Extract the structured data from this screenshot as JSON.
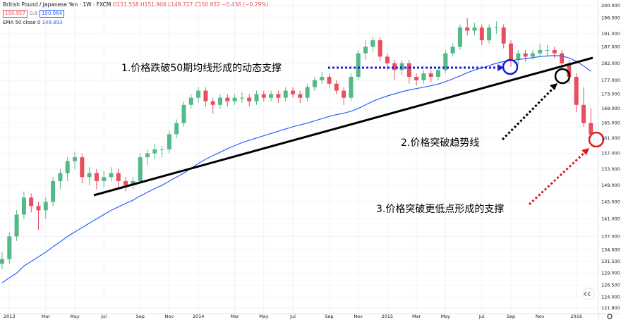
{
  "header": {
    "symbol": "British Pound / Japanese Yen · 1W · FXCM",
    "ohlc": "O151.558 H151.906 L149.727 C150.952 −0.436 (−0.29%)",
    "bid": "150.957",
    "spread": "0.8",
    "ask": "150.964",
    "indicator": "EMA 50 close 0",
    "indicator_value": "149.893"
  },
  "chart_data": {
    "type": "candlestick",
    "log_scale": true,
    "grid": true,
    "up_color": "#53b987",
    "down_color": "#eb4d5c",
    "categories": [
      null,
      "2013",
      null,
      null,
      null,
      null,
      "Mar",
      null,
      null,
      null,
      "May",
      null,
      null,
      null,
      "Jul",
      null,
      null,
      null,
      null,
      "Sep",
      null,
      null,
      null,
      "Nov",
      null,
      null,
      null,
      "2014",
      null,
      null,
      null,
      null,
      "Mar",
      null,
      null,
      null,
      "May",
      null,
      null,
      null,
      "Jul",
      null,
      null,
      null,
      null,
      "Sep",
      null,
      null,
      null,
      "Nov",
      null,
      null,
      null,
      "2015",
      null,
      null,
      null,
      "Mar",
      null,
      null,
      null,
      "May",
      null,
      null,
      null,
      null,
      "Jul",
      null,
      null,
      null,
      "Sep",
      null,
      null,
      null,
      "Nov",
      null,
      null,
      null,
      null,
      "2016",
      null,
      null
    ],
    "ohlc": [
      [
        131,
        133.5,
        129.8,
        132
      ],
      [
        132,
        138,
        131,
        137
      ],
      [
        137,
        143,
        136,
        142
      ],
      [
        142,
        147.5,
        141,
        146
      ],
      [
        146,
        147,
        142.5,
        144
      ],
      [
        144,
        145,
        138.5,
        143
      ],
      [
        143,
        146,
        141,
        145
      ],
      [
        145,
        151,
        144,
        150
      ],
      [
        150,
        153,
        148,
        152
      ],
      [
        152,
        156,
        150,
        155
      ],
      [
        155,
        157.5,
        153,
        156
      ],
      [
        156,
        157,
        149.5,
        151
      ],
      [
        151,
        153.5,
        149,
        152
      ],
      [
        152,
        153,
        148,
        150
      ],
      [
        150,
        152.5,
        148.5,
        151
      ],
      [
        151,
        153.5,
        150,
        152
      ],
      [
        152,
        153,
        148.5,
        150
      ],
      [
        150,
        151,
        147.5,
        149
      ],
      [
        149,
        151,
        148,
        150
      ],
      [
        150,
        157,
        149.5,
        156
      ],
      [
        156,
        158,
        154,
        157
      ],
      [
        157,
        159.5,
        155.5,
        158
      ],
      [
        158,
        159,
        156,
        158
      ],
      [
        158,
        163,
        157,
        162
      ],
      [
        162,
        166,
        161,
        165
      ],
      [
        165,
        171,
        164,
        170
      ],
      [
        170,
        173,
        169,
        172
      ],
      [
        172,
        175,
        170.5,
        174
      ],
      [
        174,
        175,
        169.5,
        171
      ],
      [
        171,
        172,
        167.5,
        170
      ],
      [
        170,
        173,
        169,
        172
      ],
      [
        172,
        173,
        169.5,
        171
      ],
      [
        171,
        173,
        170,
        172
      ],
      [
        172,
        173.5,
        170.5,
        172
      ],
      [
        172,
        173,
        169.5,
        171
      ],
      [
        171,
        174,
        170,
        173
      ],
      [
        173,
        174,
        171,
        172
      ],
      [
        172,
        174,
        171,
        173
      ],
      [
        173,
        174,
        170.5,
        172
      ],
      [
        172,
        175,
        171,
        174
      ],
      [
        174,
        175,
        172,
        173
      ],
      [
        173,
        174,
        170.5,
        172
      ],
      [
        172,
        176,
        171,
        175
      ],
      [
        175,
        178,
        174,
        177
      ],
      [
        177,
        179.5,
        176,
        178
      ],
      [
        178,
        179,
        175,
        176
      ],
      [
        176,
        177,
        173,
        174
      ],
      [
        174,
        175,
        170,
        172
      ],
      [
        172,
        179,
        171,
        178
      ],
      [
        178,
        186,
        177,
        185
      ],
      [
        185,
        189,
        183,
        187
      ],
      [
        187,
        190,
        185.5,
        189
      ],
      [
        189,
        190,
        182.5,
        184
      ],
      [
        184,
        185,
        180,
        182
      ],
      [
        182,
        183,
        177,
        180
      ],
      [
        180,
        183,
        178.5,
        182
      ],
      [
        182,
        183,
        176,
        178
      ],
      [
        178,
        179,
        175.5,
        177
      ],
      [
        177,
        180,
        176,
        179
      ],
      [
        179,
        180,
        176.5,
        178
      ],
      [
        178,
        181,
        177,
        180
      ],
      [
        180,
        186,
        179,
        185
      ],
      [
        185,
        188,
        184,
        187
      ],
      [
        187,
        194,
        186,
        193
      ],
      [
        193,
        196,
        190.5,
        192
      ],
      [
        192,
        194.5,
        190.5,
        193
      ],
      [
        193,
        194,
        187.5,
        189
      ],
      [
        189,
        194,
        188,
        193
      ],
      [
        193,
        195,
        191,
        193
      ],
      [
        193,
        194,
        186.5,
        188
      ],
      [
        188,
        189,
        181,
        183
      ],
      [
        183,
        186,
        181.5,
        185
      ],
      [
        185,
        186,
        182.5,
        184
      ],
      [
        184,
        186,
        183,
        185
      ],
      [
        185,
        188,
        184,
        186
      ],
      [
        186,
        187.5,
        184,
        186
      ],
      [
        186,
        187,
        183.5,
        185
      ],
      [
        185,
        186,
        180.5,
        182
      ],
      [
        182,
        183,
        176,
        178
      ],
      [
        178,
        179,
        168,
        170
      ],
      [
        170,
        175,
        164,
        165
      ],
      [
        165,
        169,
        161,
        162
      ]
    ],
    "ema": {
      "color": "#2962ff",
      "values": [
        127,
        128,
        129,
        130.5,
        131.5,
        132.5,
        133.5,
        134.7,
        135.8,
        137,
        138,
        139,
        140,
        141,
        142,
        143,
        143.8,
        144.6,
        145.4,
        146.4,
        147.3,
        148.2,
        149,
        150,
        151,
        152,
        153.2,
        154.4,
        155.5,
        156.4,
        157.3,
        158.2,
        159,
        159.8,
        160.4,
        161,
        161.6,
        162.2,
        162.8,
        163.4,
        164,
        164.5,
        165,
        165.6,
        166.2,
        166.8,
        167.3,
        167.7,
        168.2,
        169,
        170,
        171,
        171.8,
        172.5,
        173.1,
        173.7,
        174.2,
        174.6,
        175,
        175.4,
        175.9,
        176.6,
        177.4,
        178.3,
        179.2,
        180,
        180.6,
        181.3,
        182,
        182.5,
        182.8,
        183.1,
        183.4,
        183.7,
        184,
        184.2,
        184.3,
        184.2,
        183.6,
        182.6,
        181.2,
        179.6
      ]
    },
    "ylim": [
      120.7,
      201.9
    ],
    "yticks": [
      {
        "value": 200,
        "label": "200.000"
      },
      {
        "value": 196,
        "label": "196.000"
      },
      {
        "value": 191,
        "label": "191.000"
      },
      {
        "value": 187,
        "label": "187.000"
      },
      {
        "value": 182,
        "label": "182.000"
      },
      {
        "value": 177,
        "label": "177.000"
      },
      {
        "value": 173,
        "label": "173.000"
      },
      {
        "value": 169,
        "label": "169.000"
      },
      {
        "value": 165,
        "label": "165.000"
      },
      {
        "value": 161,
        "label": "161.000"
      },
      {
        "value": 157,
        "label": "157.000"
      },
      {
        "value": 153,
        "label": "153.000"
      },
      {
        "value": 149,
        "label": "149.000"
      },
      {
        "value": 145,
        "label": "145.000"
      },
      {
        "value": 141,
        "label": "141.000"
      },
      {
        "value": 137,
        "label": "137.000"
      },
      {
        "value": 134,
        "label": "134.000"
      },
      {
        "value": 131.5,
        "label": "131.500"
      },
      {
        "value": 129,
        "label": "129.000"
      },
      {
        "value": 126.5,
        "label": "126.500"
      },
      {
        "value": 124,
        "label": "124.000"
      },
      {
        "value": 121.8,
        "label": "121.800"
      }
    ],
    "annotations": [
      "1.价格跌破50期均线形成的动态支撑",
      "2.价格突破趋势线",
      "3.价格突破更低点形成的支撑"
    ]
  }
}
